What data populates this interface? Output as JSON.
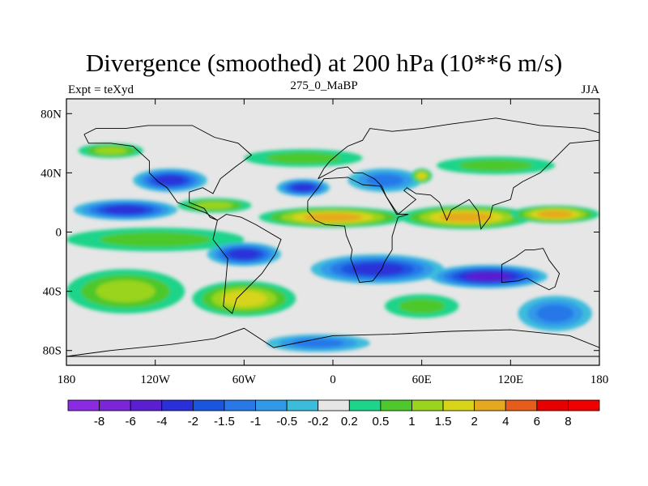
{
  "header": {
    "title": "Divergence (smoothed) at 200 hPa (10**6 m/s)",
    "left": "Expt = teXyd",
    "center": "275_0_MaBP",
    "right": "JJA"
  },
  "chart_data": {
    "type": "heatmap",
    "title": "Divergence (smoothed) at 200 hPa (10**6 m/s)",
    "x_ticks": [
      {
        "lon": -180,
        "label": "180"
      },
      {
        "lon": -120,
        "label": "120W"
      },
      {
        "lon": -60,
        "label": "60W"
      },
      {
        "lon": 0,
        "label": "0"
      },
      {
        "lon": 60,
        "label": "60E"
      },
      {
        "lon": 120,
        "label": "120E"
      },
      {
        "lon": 180,
        "label": "180"
      }
    ],
    "y_ticks": [
      {
        "lat": 80,
        "label": "80N"
      },
      {
        "lat": 40,
        "label": "40N"
      },
      {
        "lat": 0,
        "label": "0"
      },
      {
        "lat": -40,
        "label": "40S"
      },
      {
        "lat": -80,
        "label": "80S"
      }
    ],
    "xlim": [
      -180,
      180
    ],
    "ylim": [
      -90,
      90
    ],
    "colorbar": {
      "labels": [
        "-8",
        "-6",
        "-4",
        "-2",
        "-1.5",
        "-1",
        "-0.5",
        "-0.2",
        "0.2",
        "0.5",
        "1",
        "1.5",
        "2",
        "4",
        "6",
        "8"
      ],
      "colors": [
        "#8a2be2",
        "#7a25d6",
        "#5a1fd0",
        "#2a30d8",
        "#1a55e0",
        "#2878e8",
        "#309ae8",
        "#3cbcdc",
        "#e6e6e6",
        "#1ed48a",
        "#4ec82c",
        "#9ad41e",
        "#d8d41a",
        "#e6a81e",
        "#e65c1a",
        "#e60000",
        "#f00000"
      ]
    },
    "regions": [
      {
        "lat": 55,
        "lon": -150,
        "rlat": 5,
        "rlon": 22,
        "value": 1.0
      },
      {
        "lat": 50,
        "lon": -20,
        "rlat": 6,
        "rlon": 40,
        "value": 0.7
      },
      {
        "lat": 45,
        "lon": 110,
        "rlat": 6,
        "rlon": 40,
        "value": 0.7
      },
      {
        "lat": 35,
        "lon": -110,
        "rlat": 8,
        "rlon": 25,
        "value": -2.5
      },
      {
        "lat": 30,
        "lon": -20,
        "rlat": 6,
        "rlon": 18,
        "value": -2.0
      },
      {
        "lat": 35,
        "lon": 35,
        "rlat": 8,
        "rlon": 25,
        "value": -1.0
      },
      {
        "lat": 38,
        "lon": 60,
        "rlat": 5,
        "rlon": 7,
        "value": 1.5
      },
      {
        "lat": 15,
        "lon": -140,
        "rlat": 7,
        "rlon": 35,
        "value": -3.0
      },
      {
        "lat": 18,
        "lon": -80,
        "rlat": 5,
        "rlon": 25,
        "value": 1.0
      },
      {
        "lat": 10,
        "lon": 0,
        "rlat": 7,
        "rlon": 50,
        "value": 2.2
      },
      {
        "lat": 10,
        "lon": 90,
        "rlat": 8,
        "rlon": 45,
        "value": 2.8
      },
      {
        "lat": 12,
        "lon": 150,
        "rlat": 6,
        "rlon": 30,
        "value": 3.5
      },
      {
        "lat": -5,
        "lon": -120,
        "rlat": 8,
        "rlon": 60,
        "value": 0.8
      },
      {
        "lat": -15,
        "lon": -60,
        "rlat": 8,
        "rlon": 25,
        "value": -2.0
      },
      {
        "lat": -25,
        "lon": 30,
        "rlat": 10,
        "rlon": 45,
        "value": -2.5
      },
      {
        "lat": -30,
        "lon": 105,
        "rlat": 8,
        "rlon": 40,
        "value": -4.2
      },
      {
        "lat": -40,
        "lon": -140,
        "rlat": 15,
        "rlon": 40,
        "value": 1.3
      },
      {
        "lat": -45,
        "lon": -60,
        "rlat": 12,
        "rlon": 35,
        "value": 1.6
      },
      {
        "lat": -55,
        "lon": 150,
        "rlat": 12,
        "rlon": 25,
        "value": -1.0
      },
      {
        "lat": -75,
        "lon": -10,
        "rlat": 6,
        "rlon": 35,
        "value": -1.0
      },
      {
        "lat": -50,
        "lon": 60,
        "rlat": 8,
        "rlon": 25,
        "value": 0.8
      }
    ]
  }
}
